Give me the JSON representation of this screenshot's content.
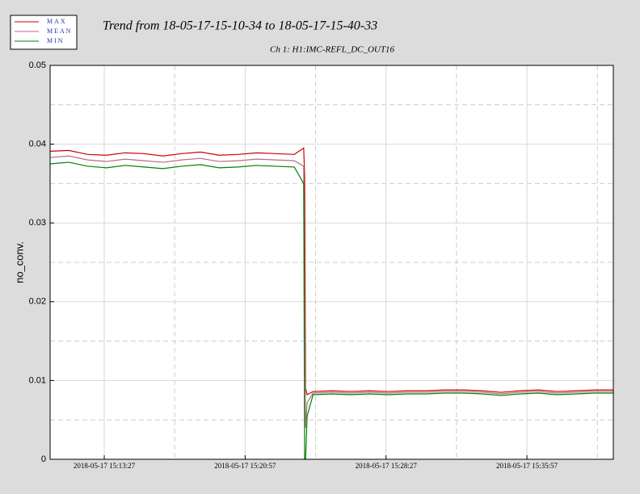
{
  "chart_data": {
    "type": "line",
    "title": "Trend from 18-05-17-15-10-34 to 18-05-17-15-40-33",
    "subtitle": "Ch 1: H1:IMC-REFL_DC_OUT16",
    "y_label": "no_conv.",
    "x": [
      "2018-05-17 15:10:34",
      "2018-05-17 15:11:34",
      "2018-05-17 15:12:34",
      "2018-05-17 15:13:34",
      "2018-05-17 15:14:34",
      "2018-05-17 15:15:34",
      "2018-05-17 15:16:34",
      "2018-05-17 15:17:34",
      "2018-05-17 15:18:34",
      "2018-05-17 15:19:34",
      "2018-05-17 15:20:34",
      "2018-05-17 15:21:34",
      "2018-05-17 15:22:34",
      "2018-05-17 15:23:34",
      "2018-05-17 15:24:04",
      "2018-05-17 15:24:07",
      "2018-05-17 15:24:10",
      "2018-05-17 15:24:15",
      "2018-05-17 15:24:34",
      "2018-05-17 15:25:34",
      "2018-05-17 15:26:34",
      "2018-05-17 15:27:34",
      "2018-05-17 15:28:34",
      "2018-05-17 15:29:34",
      "2018-05-17 15:30:34",
      "2018-05-17 15:31:34",
      "2018-05-17 15:32:34",
      "2018-05-17 15:33:34",
      "2018-05-17 15:34:34",
      "2018-05-17 15:35:34",
      "2018-05-17 15:36:34",
      "2018-05-17 15:37:34",
      "2018-05-17 15:38:34",
      "2018-05-17 15:39:34",
      "2018-05-17 15:40:33"
    ],
    "series": [
      {
        "name": "MAX",
        "color": "#cc0000",
        "values": [
          0.0391,
          0.0392,
          0.0387,
          0.0386,
          0.0389,
          0.0388,
          0.0385,
          0.0388,
          0.039,
          0.0386,
          0.0387,
          0.0389,
          0.0388,
          0.0387,
          0.0395,
          0.036,
          0.009,
          0.0082,
          0.0086,
          0.0087,
          0.0086,
          0.0087,
          0.0086,
          0.0087,
          0.0087,
          0.0088,
          0.0088,
          0.0087,
          0.0085,
          0.0087,
          0.0088,
          0.0086,
          0.0087,
          0.0088,
          0.0088
        ]
      },
      {
        "name": "MEAN",
        "color": "#b07080",
        "values": [
          0.0383,
          0.0385,
          0.038,
          0.0378,
          0.0381,
          0.0379,
          0.0377,
          0.038,
          0.0382,
          0.0378,
          0.0379,
          0.0381,
          0.038,
          0.0379,
          0.0372,
          0.019,
          0.004,
          0.0072,
          0.0084,
          0.0085,
          0.0084,
          0.0085,
          0.0084,
          0.0085,
          0.0085,
          0.0086,
          0.0086,
          0.0085,
          0.0083,
          0.0085,
          0.0086,
          0.0084,
          0.0085,
          0.0086,
          0.0086
        ]
      },
      {
        "name": "MIN",
        "color": "#008000",
        "values": [
          0.0375,
          0.0377,
          0.0372,
          0.037,
          0.0373,
          0.0371,
          0.0369,
          0.0372,
          0.0374,
          0.037,
          0.0371,
          0.0373,
          0.0372,
          0.0371,
          0.035,
          0,
          0,
          0.0055,
          0.0082,
          0.0083,
          0.0082,
          0.0083,
          0.0082,
          0.0083,
          0.0083,
          0.0084,
          0.0084,
          0.0083,
          0.0081,
          0.0083,
          0.0084,
          0.0082,
          0.0083,
          0.0084,
          0.0084
        ]
      }
    ],
    "xlim": [
      "2018-05-17 15:10:34",
      "2018-05-17 15:40:33"
    ],
    "xticks": [
      "2018-05-17 15:13:27",
      "2018-05-17 15:20:57",
      "2018-05-17 15:28:27",
      "2018-05-17 15:35:57"
    ],
    "ylim": [
      0,
      0.05
    ],
    "yticks": [
      0,
      0.01,
      0.02,
      0.03,
      0.04,
      0.05
    ],
    "grid": true
  }
}
